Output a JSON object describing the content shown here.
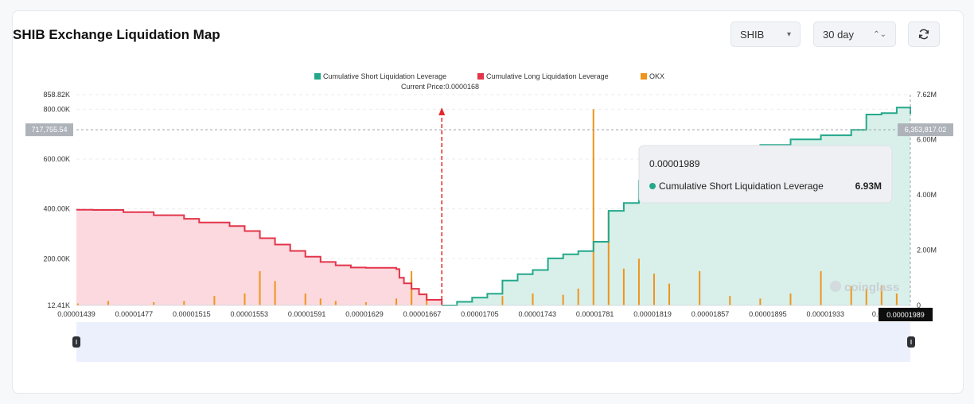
{
  "header": {
    "title": "SHIB Exchange Liquidation Map",
    "symbol_select": "SHIB",
    "period_select": "30 day",
    "symbol_arrow": "▾",
    "period_arrow": "⌃⌄"
  },
  "icons": {
    "refresh": "refresh-icon"
  },
  "colors": {
    "short": "#24a88a",
    "short_fill": "#d4eee7",
    "long": "#e3344a",
    "long_fill": "#fbd5da",
    "okx": "#f0941b",
    "current_price": "#e22828",
    "selector_band": "#ecf0fd"
  },
  "chart_data": {
    "type": "area",
    "legend": [
      "Cumulative Short Liquidation Leverage",
      "Cumulative Long Liquidation Leverage",
      "OKX"
    ],
    "legend_position": "top-center",
    "current_price_label": "Current Price:0.0000168",
    "current_price": 1.68e-05,
    "x_ticks": [
      "0.00001439",
      "0.00001477",
      "0.00001515",
      "0.00001553",
      "0.00001591",
      "0.00001629",
      "0.00001667",
      "0.00001705",
      "0.00001743",
      "0.00001781",
      "0.00001819",
      "0.00001857",
      "0.00001895",
      "0.00001933",
      "0.0000"
    ],
    "x_range": [
      1.439e-05,
      1.989e-05
    ],
    "y_left_ticks": [
      "858.82K",
      "800.00K",
      "600.00K",
      "400.00K",
      "200.00K",
      "12.41K"
    ],
    "y_left_range": [
      12410,
      858820
    ],
    "y_right_ticks": [
      "7.62M",
      "6.00M",
      "4.00M",
      "2.00M",
      "0"
    ],
    "y_right_range": [
      0,
      7620000
    ],
    "crosshair_left_label": "717,755.54",
    "crosshair_right_label": "6,353,817.02",
    "crosshair_x_label": "0.00001989",
    "grid": true,
    "long_series": {
      "name": "Cumulative Long Liquidation Leverage",
      "x": [
        1.439e-05,
        1.45e-05,
        1.47e-05,
        1.49e-05,
        1.51e-05,
        1.52e-05,
        1.54e-05,
        1.55e-05,
        1.56e-05,
        1.57e-05,
        1.58e-05,
        1.59e-05,
        1.6e-05,
        1.61e-05,
        1.62e-05,
        1.63e-05,
        1.64e-05,
        1.65e-05,
        1.652e-05,
        1.655e-05,
        1.66e-05,
        1.665e-05,
        1.67e-05,
        1.68e-05
      ],
      "y": [
        3460000,
        3450000,
        3370000,
        3260000,
        3130000,
        3000000,
        2870000,
        2690000,
        2430000,
        2200000,
        1970000,
        1760000,
        1570000,
        1450000,
        1370000,
        1360000,
        1360000,
        1310000,
        1000000,
        800000,
        600000,
        400000,
        200000,
        0
      ]
    },
    "short_series": {
      "name": "Cumulative Short Liquidation Leverage",
      "x": [
        1.68e-05,
        1.69e-05,
        1.7e-05,
        1.71e-05,
        1.72e-05,
        1.73e-05,
        1.74e-05,
        1.75e-05,
        1.76e-05,
        1.77e-05,
        1.78e-05,
        1.79e-05,
        1.8e-05,
        1.81e-05,
        1.82e-05,
        1.83e-05,
        1.85e-05,
        1.87e-05,
        1.89e-05,
        1.91e-05,
        1.93e-05,
        1.95e-05,
        1.96e-05,
        1.97e-05,
        1.98e-05,
        1.989e-05
      ],
      "y": [
        0,
        130000,
        280000,
        420000,
        900000,
        1130000,
        1280000,
        1700000,
        1850000,
        1960000,
        2300000,
        3420000,
        3700000,
        4500000,
        5000000,
        5300000,
        5600000,
        5750000,
        5800000,
        6000000,
        6150000,
        6350000,
        6900000,
        6950000,
        7150000,
        6930000
      ]
    },
    "okx_series": {
      "name": "OKX",
      "x": [
        1.44e-05,
        1.46e-05,
        1.49e-05,
        1.51e-05,
        1.53e-05,
        1.55e-05,
        1.56e-05,
        1.57e-05,
        1.59e-05,
        1.6e-05,
        1.61e-05,
        1.63e-05,
        1.65e-05,
        1.66e-05,
        1.66e-05,
        1.67e-05,
        1.72e-05,
        1.74e-05,
        1.76e-05,
        1.77e-05,
        1.78e-05,
        1.79e-05,
        1.8e-05,
        1.81e-05,
        1.82e-05,
        1.83e-05,
        1.85e-05,
        1.87e-05,
        1.89e-05,
        1.91e-05,
        1.93e-05,
        1.95e-05,
        1.96e-05,
        1.97e-05,
        1.98e-05
      ],
      "y": [
        20000,
        30000,
        25000,
        30000,
        50000,
        60000,
        150000,
        110000,
        60000,
        40000,
        30000,
        25000,
        40000,
        150000,
        120000,
        60000,
        50000,
        60000,
        55000,
        80000,
        800000,
        390000,
        160000,
        200000,
        140000,
        100000,
        150000,
        50000,
        40000,
        60000,
        150000,
        90000,
        80000,
        90000,
        60000
      ]
    }
  },
  "watermark": "coinglass",
  "tooltip": {
    "price": "0.00001989",
    "series_name": "Cumulative Short Liquidation Leverage",
    "value": "6.93M"
  }
}
